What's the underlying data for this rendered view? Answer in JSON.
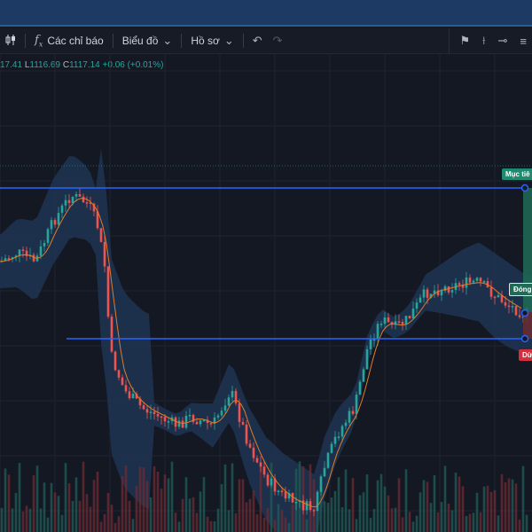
{
  "toolbar": {
    "candle_icon": "candlestick-icon",
    "indicators_label": "Các chỉ báo",
    "layout_label": "Biểu đồ",
    "template_label": "Hồ sơ",
    "undo_icon": "undo-icon",
    "redo_icon": "redo-icon"
  },
  "ohlc": {
    "open_partial": "17.41",
    "low_prefix": "L",
    "low": "1116.69",
    "close_prefix": "C",
    "close": "1117.14",
    "change": "+0.06 (+0.01%)"
  },
  "position_tool": {
    "target_label": "Mục tiê",
    "entry_label": "Đóng",
    "stop_label": "Dừ"
  },
  "colors": {
    "up": "#26a69a",
    "down": "#ef5350",
    "band": "#1e3350",
    "ma": "#e07b2a",
    "line": "#2962ff"
  }
}
